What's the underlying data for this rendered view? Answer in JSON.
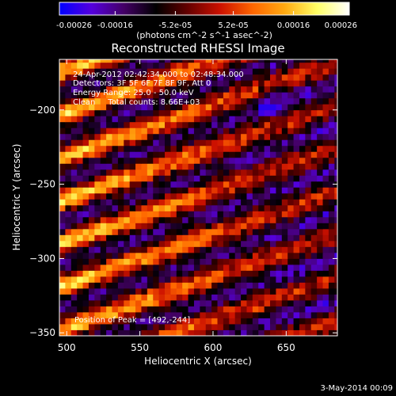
{
  "colorbar": {
    "ticks": [
      "-0.00026",
      "-0.00016",
      "-5.2e-05",
      "5.2e-05",
      "0.00016",
      "0.00026"
    ],
    "range": [
      -0.00026,
      0.00026
    ],
    "colormap": [
      "#0000ff",
      "#5500dd",
      "#440066",
      "#000000",
      "#660000",
      "#cc1100",
      "#ff6600",
      "#ffaa11",
      "#ffff66",
      "#ffffff"
    ],
    "unit_label": "(photons cm^-2 s^-1 asec^-2)"
  },
  "title": "Reconstructed RHESSI Image",
  "annotations": {
    "time_range": "24-Apr-2012 02:42:34.000 to 02:48:34.000",
    "detectors": "Detectors: 3F 5F 6F 7F 8F 9F, Att 0",
    "energy": "Energy Range: 25.0 - 50.0 keV",
    "method": "Clean     Total counts: 8.66E+03",
    "peak": "Position of Peak = [492,-244]"
  },
  "footer_timestamp": "3-May-2014 00:09",
  "chart_data": {
    "type": "heatmap",
    "title": "Reconstructed RHESSI Image",
    "xlabel": "Heliocentric X (arcsec)",
    "ylabel": "Heliocentric Y (arcsec)",
    "xlim": [
      495,
      685
    ],
    "ylim": [
      -352,
      -166
    ],
    "xticks": [
      500,
      550,
      600,
      650
    ],
    "yticks": [
      -200,
      -250,
      -300,
      -350
    ],
    "pixel_size_arcsec": 4,
    "value_range": [
      -0.00026,
      0.00026
    ],
    "pattern": "diagonal streaks rising to the right; bright positive (yellow/white) streaks concentrated at left edge, purple/blue negative background toward right",
    "peak_position": [
      492,
      -244
    ]
  }
}
